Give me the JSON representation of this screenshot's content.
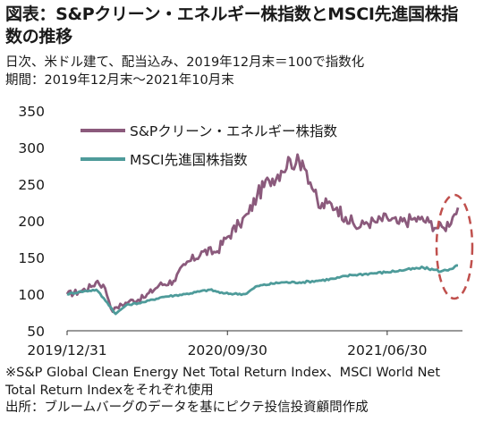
{
  "title_line1": "図表：S&Pクリーン・エネルギー株指数とMSCI先進国株指",
  "title_line2": "数の推移",
  "subtitle_line1": "日次、米ドル建て、配当込み、2019年12月末＝100で指数化",
  "subtitle_line2": "期間：2019年12月末～2021年10月末",
  "footnote_line1": "※S&P Global Clean Energy Net Total Return Index、MSCI World Net",
  "footnote_line2": "Total Return Indexをそれぞれ使用",
  "footnote_line3": "出所：ブルームバーグのデータを基にピクテ投信投資顧問作成",
  "colors": {
    "clean_energy": "#8b5a7c",
    "msci": "#4e9b9a",
    "highlight": "#c0504d"
  },
  "chart_data": {
    "type": "line",
    "ylim": [
      50,
      350
    ],
    "yticks": [
      50,
      100,
      150,
      200,
      250,
      300,
      350
    ],
    "xlim": [
      "2019-12-31",
      "2021-10-29"
    ],
    "xticks": [
      {
        "date": "2019-12-31",
        "label": "2019/12/31"
      },
      {
        "date": "2020-09-30",
        "label": "2020/09/30"
      },
      {
        "date": "2021-06-30",
        "label": "2021/06/30"
      }
    ],
    "grid": false,
    "legend_position": "top-left",
    "annotation": "dashed-ellipse-around-recent-period",
    "series": [
      {
        "name": "S&Pクリーン・エネルギー株指数",
        "points": [
          [
            "2019-12-31",
            100
          ],
          [
            "2020-01-20",
            103
          ],
          [
            "2020-02-10",
            110
          ],
          [
            "2020-02-21",
            118
          ],
          [
            "2020-03-05",
            108
          ],
          [
            "2020-03-18",
            76
          ],
          [
            "2020-03-25",
            82
          ],
          [
            "2020-04-15",
            90
          ],
          [
            "2020-05-10",
            95
          ],
          [
            "2020-06-05",
            112
          ],
          [
            "2020-06-30",
            118
          ],
          [
            "2020-07-20",
            140
          ],
          [
            "2020-08-20",
            158
          ],
          [
            "2020-09-10",
            157
          ],
          [
            "2020-09-30",
            178
          ],
          [
            "2020-10-20",
            195
          ],
          [
            "2020-11-05",
            210
          ],
          [
            "2020-11-20",
            235
          ],
          [
            "2020-12-10",
            255
          ],
          [
            "2020-12-31",
            268
          ],
          [
            "2021-01-15",
            284
          ],
          [
            "2021-01-25",
            278
          ],
          [
            "2021-02-05",
            282
          ],
          [
            "2021-02-12",
            268
          ],
          [
            "2021-02-25",
            240
          ],
          [
            "2021-03-05",
            218
          ],
          [
            "2021-03-20",
            224
          ],
          [
            "2021-04-05",
            218
          ],
          [
            "2021-04-20",
            205
          ],
          [
            "2021-05-12",
            190
          ],
          [
            "2021-05-25",
            198
          ],
          [
            "2021-06-10",
            198
          ],
          [
            "2021-06-30",
            204
          ],
          [
            "2021-07-20",
            196
          ],
          [
            "2021-08-10",
            202
          ],
          [
            "2021-08-25",
            202
          ],
          [
            "2021-09-10",
            198
          ],
          [
            "2021-09-25",
            190
          ],
          [
            "2021-10-05",
            190
          ],
          [
            "2021-10-20",
            205
          ],
          [
            "2021-10-29",
            218
          ]
        ]
      },
      {
        "name": "MSCI先進国株指数",
        "points": [
          [
            "2019-12-31",
            100
          ],
          [
            "2020-01-20",
            103
          ],
          [
            "2020-02-19",
            106
          ],
          [
            "2020-03-09",
            88
          ],
          [
            "2020-03-23",
            73
          ],
          [
            "2020-04-10",
            85
          ],
          [
            "2020-05-10",
            89
          ],
          [
            "2020-06-10",
            96
          ],
          [
            "2020-07-20",
            100
          ],
          [
            "2020-08-31",
            106
          ],
          [
            "2020-09-23",
            101
          ],
          [
            "2020-10-30",
            100
          ],
          [
            "2020-11-20",
            111
          ],
          [
            "2020-12-31",
            116
          ],
          [
            "2021-01-31",
            116
          ],
          [
            "2021-02-28",
            118
          ],
          [
            "2021-03-31",
            121
          ],
          [
            "2021-04-30",
            126
          ],
          [
            "2021-05-31",
            128
          ],
          [
            "2021-06-30",
            130
          ],
          [
            "2021-07-31",
            133
          ],
          [
            "2021-08-31",
            136
          ],
          [
            "2021-09-20",
            133
          ],
          [
            "2021-09-30",
            131
          ],
          [
            "2021-10-15",
            134
          ],
          [
            "2021-10-29",
            139
          ]
        ]
      }
    ]
  }
}
